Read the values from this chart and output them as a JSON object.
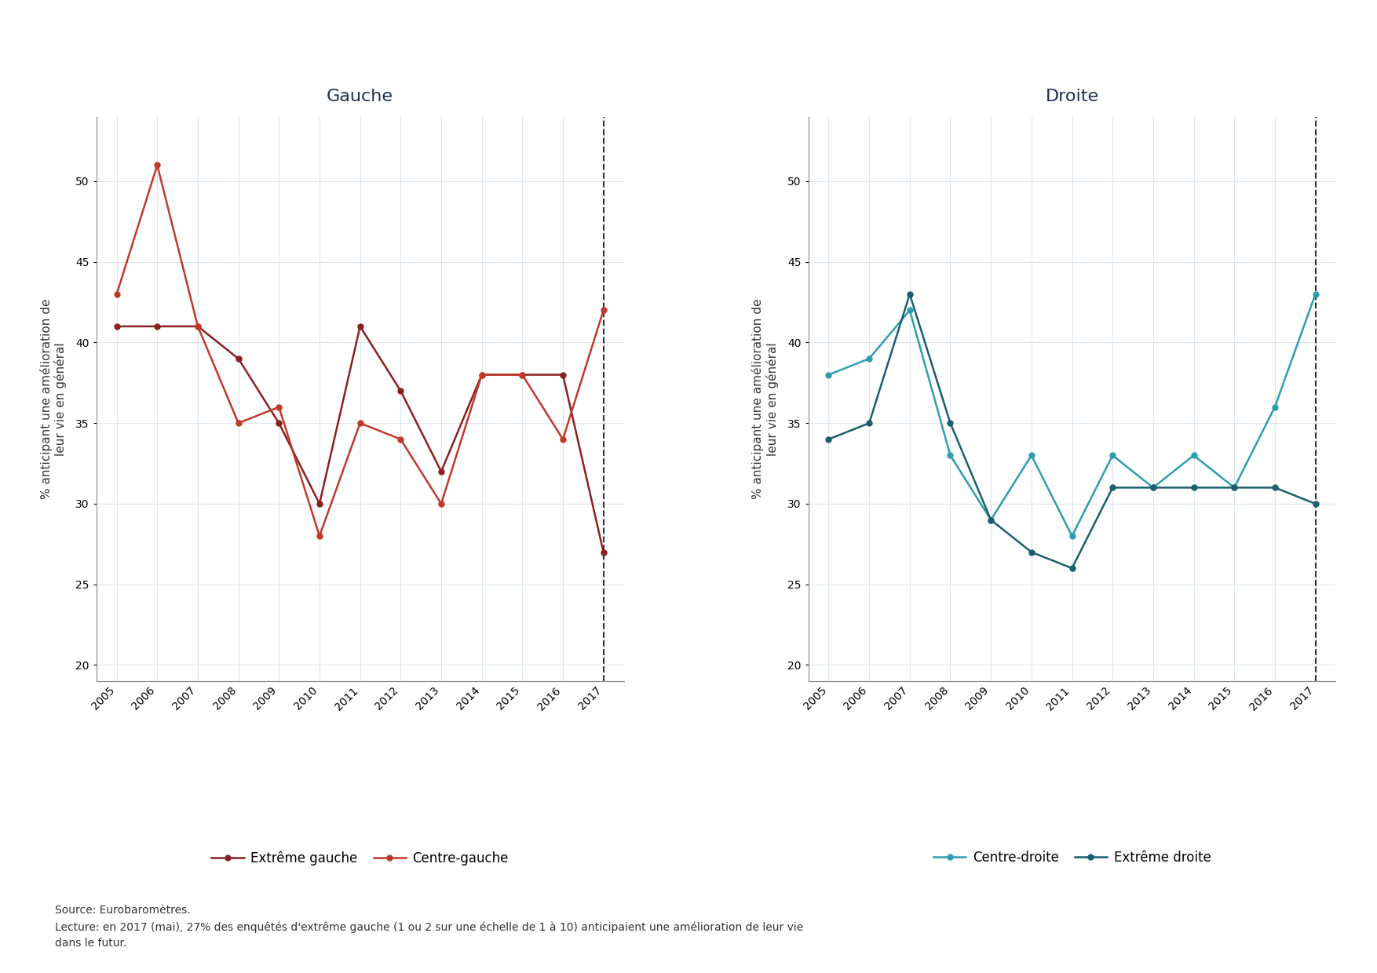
{
  "years": [
    2005,
    2006,
    2007,
    2008,
    2009,
    2010,
    2011,
    2012,
    2013,
    2014,
    2015,
    2016,
    2017
  ],
  "extreme_gauche": [
    41,
    41,
    41,
    39,
    35,
    30,
    41,
    37,
    32,
    38,
    38,
    38,
    27
  ],
  "centre_gauche": [
    43,
    51,
    41,
    35,
    36,
    28,
    35,
    34,
    30,
    38,
    38,
    34,
    42
  ],
  "centre_droite": [
    38,
    39,
    42,
    33,
    29,
    33,
    28,
    33,
    31,
    33,
    31,
    36,
    43
  ],
  "extreme_droite": [
    34,
    35,
    43,
    35,
    29,
    27,
    26,
    31,
    31,
    31,
    31,
    31,
    30
  ],
  "color_extreme_gauche": "#8b2020",
  "color_centre_gauche": "#c0392b",
  "color_centre_droite": "#2e9db0",
  "color_extreme_droite": "#1a5f6e",
  "title_gauche": "Gauche",
  "title_droite": "Droite",
  "ylabel": "% anticipant une amélioration de\nleur vie en général",
  "ylim": [
    19,
    54
  ],
  "yticks": [
    20,
    25,
    30,
    35,
    40,
    45,
    50
  ],
  "legend_gauche": [
    "Extrême gauche",
    "Centre-gauche"
  ],
  "legend_droite": [
    "Centre-droite",
    "Extrême droite"
  ],
  "source_text": "Source: Eurobaromètres.\nLecture: en 2017 (mai), 27% des enquêtés d'extrême gauche (1 ou 2 sur une échelle de 1 à 10) anticipaient une amélioration de leur vie\ndans le futur.",
  "title_color": "#1e2e4a",
  "background_color": "#ffffff",
  "grid_color": "#dce6f0"
}
